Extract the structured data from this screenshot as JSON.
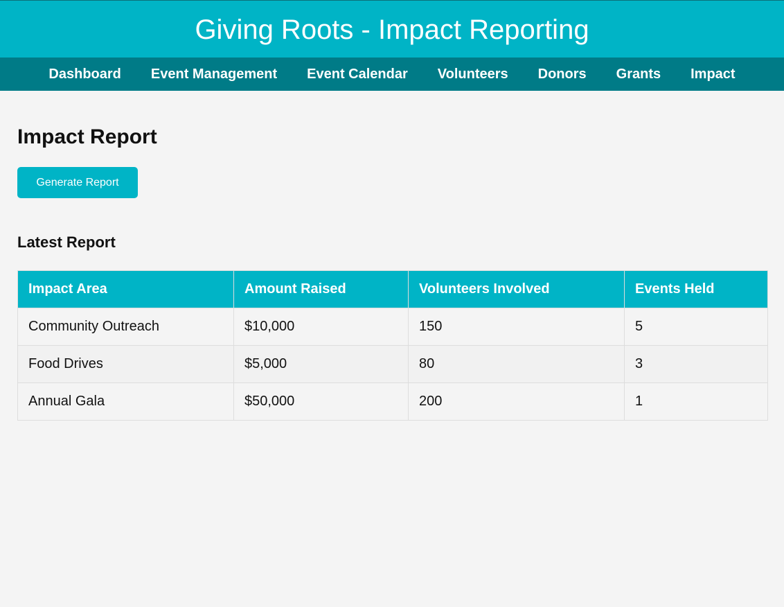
{
  "app": {
    "title": "Giving Roots - Impact Reporting"
  },
  "nav": {
    "items": [
      {
        "label": "Dashboard"
      },
      {
        "label": "Event Management"
      },
      {
        "label": "Event Calendar"
      },
      {
        "label": "Volunteers"
      },
      {
        "label": "Donors"
      },
      {
        "label": "Grants"
      },
      {
        "label": "Impact"
      }
    ]
  },
  "page": {
    "title": "Impact Report",
    "generate_button_label": "Generate Report",
    "section_title": "Latest Report"
  },
  "table": {
    "headers": [
      "Impact Area",
      "Amount Raised",
      "Volunteers Involved",
      "Events Held"
    ],
    "rows": [
      [
        "Community Outreach",
        "$10,000",
        "150",
        "5"
      ],
      [
        "Food Drives",
        "$5,000",
        "80",
        "3"
      ],
      [
        "Annual Gala",
        "$50,000",
        "200",
        "1"
      ]
    ]
  },
  "colors": {
    "primary": "#00b4c6",
    "nav": "#007b87",
    "background": "#f4f4f4"
  }
}
